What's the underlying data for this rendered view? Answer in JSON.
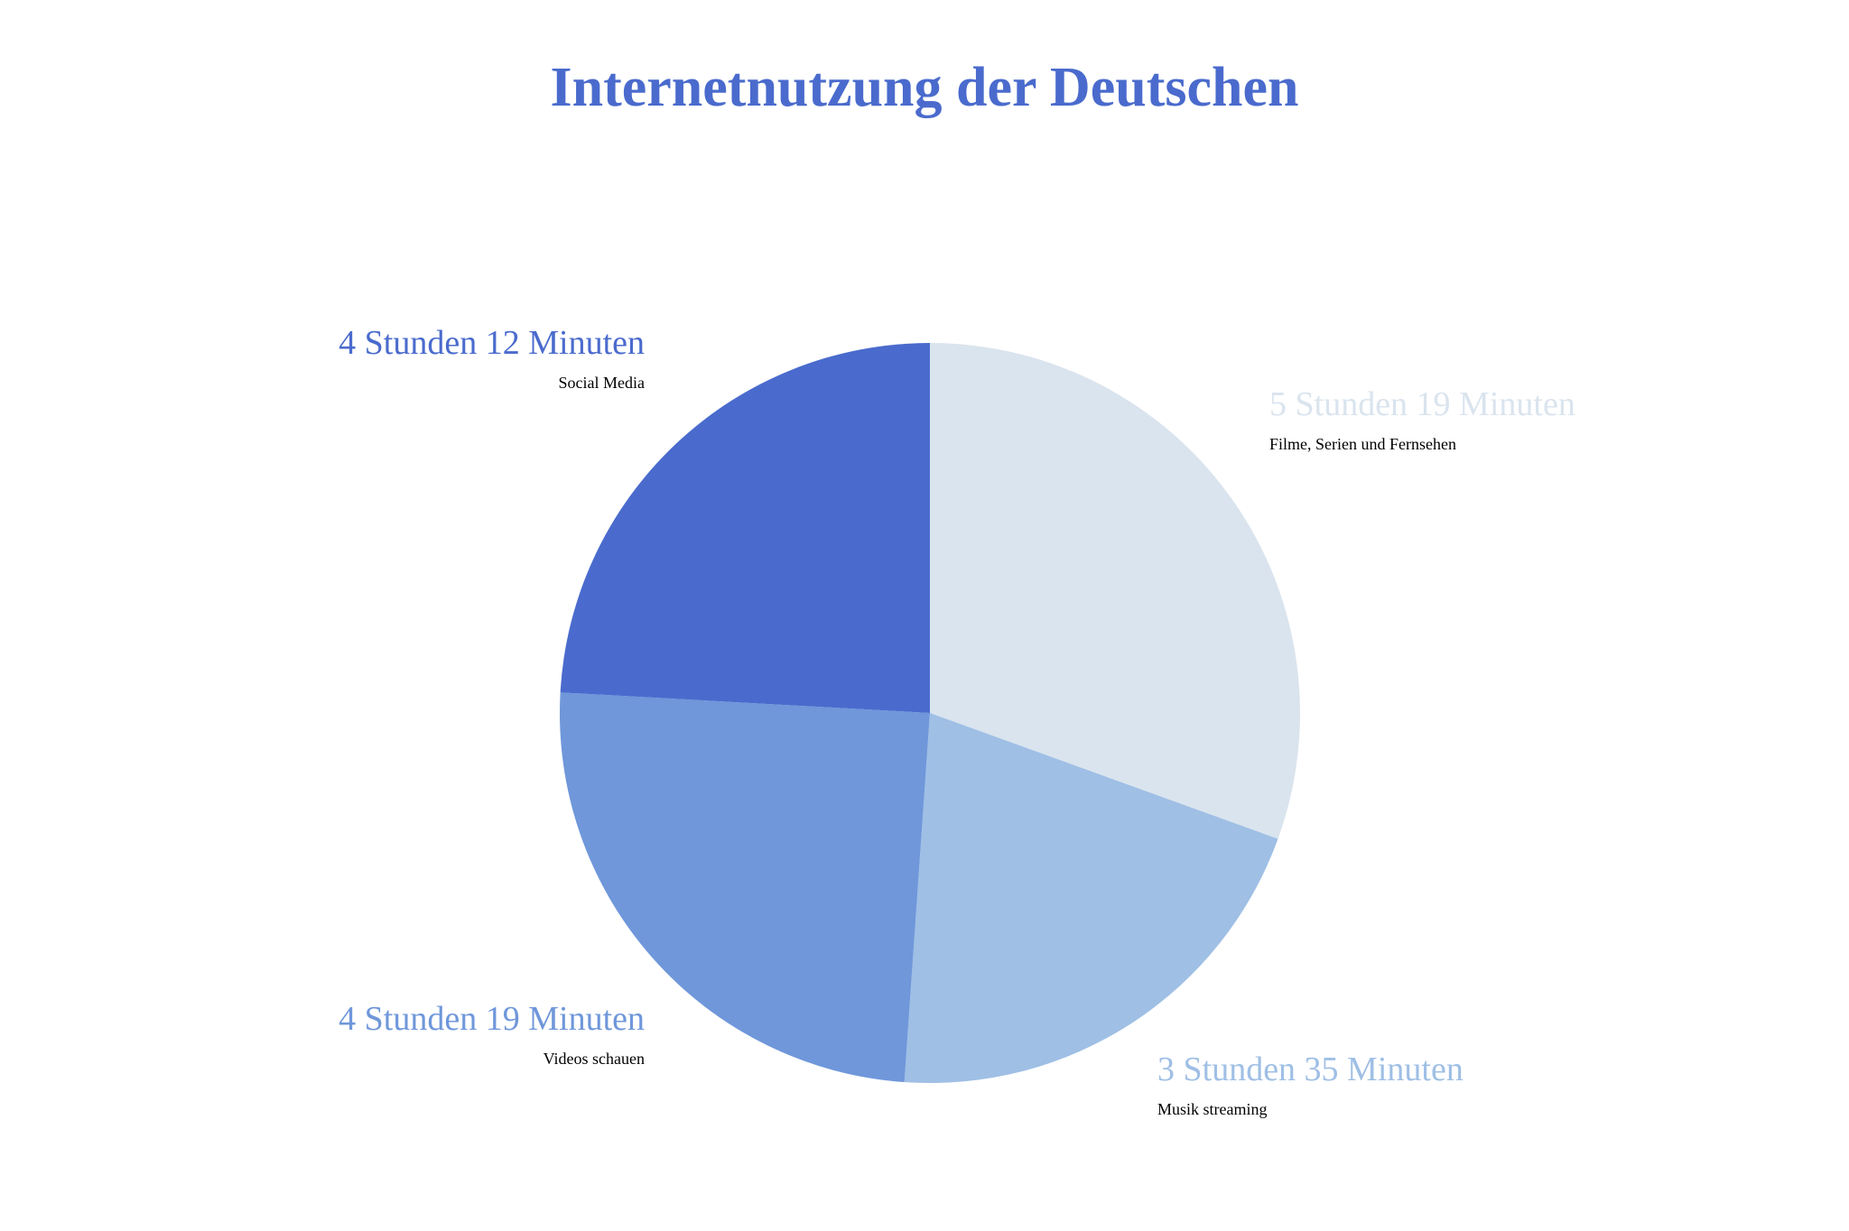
{
  "title": "Internetnutzung der Deutschen",
  "colors": {
    "title": "#4a6bcd"
  },
  "chart_data": {
    "type": "pie",
    "title": "Internetnutzung der Deutschen",
    "start_angle": "12 o'clock",
    "direction": "clockwise",
    "legend": "none",
    "slices": [
      {
        "name": "Filme, Serien und Fernsehen",
        "label": "5 Stunden 19 Minuten",
        "minutes": 319,
        "color": "#dae4ee"
      },
      {
        "name": "Musik streaming",
        "label": "3 Stunden 35 Minuten",
        "minutes": 215,
        "color": "#9fbfe5"
      },
      {
        "name": "Videos schauen",
        "label": "4 Stunden 19 Minuten",
        "minutes": 259,
        "color": "#6f97da"
      },
      {
        "name": "Social Media",
        "label": "4 Stunden 12 Minuten",
        "minutes": 252,
        "color": "#4a6bcd"
      }
    ]
  }
}
